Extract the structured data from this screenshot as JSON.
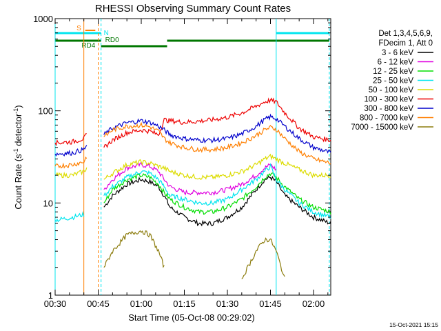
{
  "chart_data": {
    "type": "line",
    "title": "RHESSI Observing Summary Count Rates",
    "xlabel": "Start Time (05-Oct-08 00:29:02)",
    "ylabel_main": "Count Rate (s",
    "ylabel_sup1": "-1",
    "ylabel_mid": " detector",
    "ylabel_sup2": "-1",
    "ylabel_end": ")",
    "x_unit": "minutes since 00:00 UT",
    "xlim": [
      30,
      126
    ],
    "ylim": [
      1,
      1000
    ],
    "y_scale": "log",
    "x_ticks": [
      {
        "value": 30,
        "label": "00:30"
      },
      {
        "value": 45,
        "label": "00:45"
      },
      {
        "value": 60,
        "label": "01:00"
      },
      {
        "value": 75,
        "label": "01:15"
      },
      {
        "value": 90,
        "label": "01:30"
      },
      {
        "value": 105,
        "label": "01:45"
      },
      {
        "value": 120,
        "label": "02:00"
      }
    ],
    "y_ticks": [
      {
        "value": 1,
        "label": "1"
      },
      {
        "value": 10,
        "label": "10"
      },
      {
        "value": 100,
        "label": "100"
      },
      {
        "value": 1000,
        "label": "1000"
      }
    ],
    "legend_header": [
      "Det 1,3,4,5,6,9,",
      "FDecim 1, Att 0"
    ],
    "legend_position": "right",
    "timestamp": "15-Oct-2021 15:15",
    "series": [
      {
        "name": "3 - 6 keV",
        "color": "#000000",
        "x": [
          30,
          36,
          40,
          41,
          42,
          44,
          46,
          47,
          50,
          55,
          60,
          63,
          66,
          68,
          70,
          75,
          80,
          85,
          90,
          95,
          100,
          103,
          105,
          107,
          110,
          115,
          120,
          126
        ],
        "y": [
          null,
          null,
          null,
          null,
          null,
          null,
          null,
          9,
          12,
          16,
          18,
          17,
          15,
          12,
          9,
          7,
          6,
          6,
          7,
          9,
          14,
          18,
          19,
          17,
          12,
          9,
          7,
          6
        ]
      },
      {
        "name": "6 - 12 keV",
        "color": "#e000e0",
        "x": [
          30,
          36,
          40,
          41,
          42,
          44,
          46,
          47,
          50,
          55,
          60,
          63,
          66,
          68,
          70,
          75,
          80,
          85,
          90,
          95,
          100,
          103,
          105,
          107,
          110,
          115,
          120,
          126
        ],
        "y": [
          null,
          null,
          null,
          null,
          null,
          null,
          null,
          14,
          18,
          24,
          26,
          25,
          22,
          18,
          15,
          13,
          13,
          13,
          14,
          16,
          20,
          24,
          26,
          23,
          null,
          null,
          null,
          null
        ]
      },
      {
        "name": "12 - 25 keV",
        "color": "#00dd00",
        "x": [
          30,
          36,
          40,
          41,
          42,
          44,
          46,
          47,
          50,
          55,
          60,
          63,
          66,
          68,
          70,
          75,
          80,
          85,
          90,
          95,
          100,
          103,
          105,
          107,
          110,
          115,
          120,
          126
        ],
        "y": [
          null,
          null,
          null,
          null,
          null,
          null,
          null,
          10,
          14,
          18,
          20,
          19,
          16,
          13,
          11,
          9,
          8,
          8,
          9,
          11,
          15,
          19,
          21,
          19,
          15,
          11,
          9,
          8
        ]
      },
      {
        "name": "25 - 50 keV",
        "color": "#00e5ee",
        "x": [
          30,
          36,
          40,
          41,
          42,
          44,
          46,
          47,
          50,
          55,
          60,
          63,
          66,
          68,
          70,
          75,
          80,
          85,
          90,
          95,
          100,
          103,
          105,
          107,
          110,
          115,
          120,
          126
        ],
        "y": [
          6.5,
          7,
          7.5,
          null,
          null,
          null,
          null,
          12,
          15,
          19,
          22,
          21,
          18,
          15,
          12,
          11,
          10,
          10,
          11,
          14,
          18,
          22,
          25,
          18,
          14,
          10,
          8,
          7
        ]
      },
      {
        "name": "50 - 100 keV",
        "color": "#dcdc00",
        "x": [
          30,
          36,
          40,
          41,
          42,
          44,
          46,
          47,
          50,
          55,
          60,
          63,
          66,
          68,
          70,
          75,
          80,
          85,
          90,
          95,
          100,
          103,
          105,
          107,
          110,
          115,
          120,
          126
        ],
        "y": [
          20,
          20,
          22,
          24,
          null,
          null,
          null,
          18,
          21,
          26,
          28,
          27,
          25,
          24,
          22,
          20,
          19,
          19,
          20,
          22,
          26,
          30,
          32,
          30,
          27,
          23,
          20,
          20
        ]
      },
      {
        "name": "100 - 300 keV",
        "color": "#ee0000",
        "x": [
          30,
          36,
          40,
          41,
          42,
          44,
          46,
          47,
          50,
          55,
          60,
          63,
          66,
          68,
          70,
          75,
          80,
          85,
          90,
          95,
          100,
          103,
          105,
          107,
          110,
          115,
          120,
          126
        ],
        "y": [
          45,
          46,
          50,
          55,
          null,
          null,
          null,
          40,
          48,
          58,
          62,
          60,
          55,
          80,
          78,
          75,
          77,
          80,
          85,
          95,
          112,
          125,
          130,
          125,
          95,
          65,
          52,
          48
        ]
      },
      {
        "name": "300 - 800 keV",
        "color": "#0000cc",
        "x": [
          30,
          36,
          40,
          41,
          42,
          44,
          46,
          47,
          50,
          55,
          60,
          63,
          66,
          68,
          70,
          75,
          80,
          85,
          90,
          95,
          100,
          103,
          105,
          107,
          110,
          115,
          120,
          126
        ],
        "y": [
          34,
          35,
          38,
          42,
          null,
          null,
          null,
          55,
          65,
          74,
          78,
          75,
          68,
          62,
          55,
          50,
          48,
          48,
          50,
          56,
          68,
          80,
          86,
          82,
          68,
          50,
          40,
          35
        ]
      },
      {
        "name": "800 - 7000 keV",
        "color": "#ff7f00",
        "x": [
          30,
          36,
          40,
          41,
          42,
          44,
          46,
          47,
          50,
          55,
          60,
          63,
          66,
          68,
          70,
          75,
          80,
          85,
          90,
          95,
          100,
          103,
          105,
          107,
          110,
          115,
          120,
          126
        ],
        "y": [
          25,
          26,
          28,
          32,
          null,
          null,
          null,
          52,
          62,
          68,
          70,
          67,
          60,
          50,
          45,
          40,
          38,
          38,
          40,
          45,
          54,
          62,
          66,
          63,
          50,
          36,
          30,
          27
        ]
      },
      {
        "name": "7000 - 15000 keV",
        "color": "#8b7b0b",
        "x": [
          30,
          36,
          40,
          41,
          42,
          44,
          46,
          47,
          50,
          55,
          60,
          63,
          66,
          68,
          70,
          75,
          80,
          85,
          90,
          95,
          100,
          103,
          105,
          107,
          110,
          115,
          120,
          126
        ],
        "y": [
          null,
          null,
          null,
          null,
          null,
          null,
          null,
          2,
          3,
          4.5,
          5,
          4.5,
          3,
          2,
          null,
          null,
          null,
          null,
          null,
          1.5,
          3,
          4,
          4,
          3,
          1.5,
          null,
          null,
          null
        ]
      }
    ],
    "flags": [
      {
        "label": "S",
        "color": "#ff7f00",
        "start": 40.5,
        "end": 44
      },
      {
        "label": "N",
        "color": "#00e5ee",
        "start": null,
        "end": null
      },
      {
        "label": "RD0",
        "color": "#007700",
        "start": null,
        "end": null
      },
      {
        "label": "RD4",
        "color": "#007700",
        "start": null,
        "end": null
      }
    ],
    "vertical_markers": [
      {
        "x": 30,
        "color": "#00e5ee",
        "style": "solid"
      },
      {
        "x": 40,
        "color": "#ff7f00",
        "style": "solid"
      },
      {
        "x": 45,
        "color": "#ff7f00",
        "style": "dashed"
      },
      {
        "x": 46,
        "color": "#00e5ee",
        "style": "dashed"
      },
      {
        "x": 107,
        "color": "#00e5ee",
        "style": "solid"
      },
      {
        "x": 125.5,
        "color": "#00e5ee",
        "style": "dashed"
      }
    ]
  }
}
